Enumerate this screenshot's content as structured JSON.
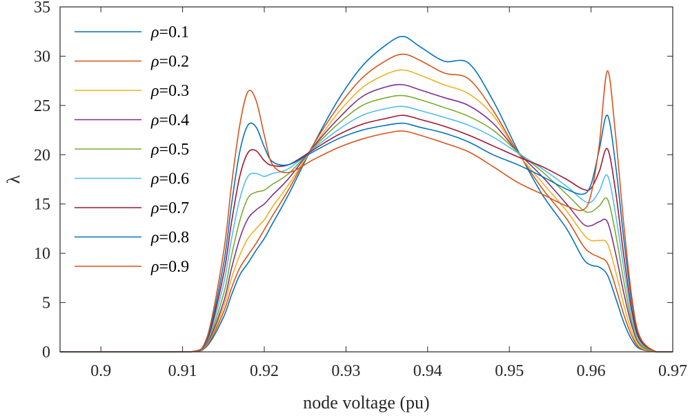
{
  "chart_data": {
    "type": "line",
    "title": "",
    "xlabel": "node voltage (pu)",
    "ylabel": "λ",
    "xlim": [
      0.895,
      0.97
    ],
    "ylim": [
      0,
      35
    ],
    "xticks": [
      0.9,
      0.91,
      0.92,
      0.93,
      0.94,
      0.95,
      0.96,
      0.97
    ],
    "xtick_labels": [
      "0.9",
      "0.91",
      "0.92",
      "0.93",
      "0.94",
      "0.95",
      "0.96",
      "0.97"
    ],
    "yticks": [
      0,
      5,
      10,
      15,
      20,
      25,
      30,
      35
    ],
    "ytick_labels": [
      "0",
      "5",
      "10",
      "15",
      "20",
      "25",
      "30",
      "35"
    ],
    "grid": false,
    "legend_position": "top-left",
    "x": [
      0.895,
      0.905,
      0.911,
      0.913,
      0.915,
      0.916,
      0.917,
      0.918,
      0.919,
      0.92,
      0.921,
      0.923,
      0.926,
      0.929,
      0.932,
      0.935,
      0.937,
      0.939,
      0.942,
      0.945,
      0.948,
      0.951,
      0.954,
      0.957,
      0.959,
      0.96,
      0.961,
      0.962,
      0.963,
      0.964,
      0.965,
      0.966,
      0.968,
      0.97
    ],
    "series": [
      {
        "name": "ρ=0.1",
        "color": "#0072BD",
        "values": [
          0,
          0,
          0,
          0.6,
          3.5,
          5.8,
          7.8,
          9.0,
          10.3,
          11.5,
          13.0,
          16.0,
          21.0,
          25.5,
          29.0,
          31.2,
          32.0,
          31.0,
          29.5,
          29.3,
          25.5,
          20.5,
          16.0,
          12.5,
          9.5,
          8.8,
          8.6,
          7.8,
          5.5,
          3.0,
          1.2,
          0.3,
          0,
          0
        ]
      },
      {
        "name": "ρ=0.2",
        "color": "#D95319",
        "values": [
          0,
          0,
          0,
          0.7,
          4.0,
          6.5,
          8.5,
          9.8,
          11.0,
          12.4,
          13.8,
          16.5,
          21.0,
          24.8,
          27.8,
          29.6,
          30.2,
          29.6,
          28.3,
          27.7,
          24.5,
          20.3,
          16.6,
          13.5,
          10.8,
          10.0,
          9.6,
          9.0,
          6.6,
          3.8,
          1.6,
          0.4,
          0,
          0
        ]
      },
      {
        "name": "ρ=0.3",
        "color": "#EDB120",
        "values": [
          0,
          0,
          0,
          0.8,
          4.5,
          7.5,
          9.8,
          11.5,
          12.5,
          13.4,
          14.7,
          17.0,
          20.8,
          24.2,
          26.8,
          28.2,
          28.6,
          28.1,
          27.1,
          26.2,
          24.0,
          20.2,
          17.2,
          14.3,
          12.0,
          11.3,
          11.3,
          11.0,
          8.2,
          4.8,
          2.0,
          0.5,
          0,
          0
        ]
      },
      {
        "name": "ρ=0.4",
        "color": "#7E2F8E",
        "values": [
          0,
          0,
          0,
          0.9,
          5.0,
          8.5,
          11.5,
          13.5,
          14.4,
          15.0,
          15.9,
          17.6,
          20.8,
          23.6,
          25.9,
          26.9,
          27.1,
          26.6,
          25.8,
          25.0,
          23.2,
          20.3,
          17.8,
          15.0,
          13.0,
          12.8,
          13.2,
          13.2,
          10.0,
          6.0,
          2.6,
          0.7,
          0,
          0
        ]
      },
      {
        "name": "ρ=0.5",
        "color": "#77AC30",
        "values": [
          0,
          0,
          0,
          1.0,
          5.8,
          9.8,
          13.3,
          15.6,
          16.2,
          16.4,
          17.0,
          18.1,
          20.7,
          23.1,
          25.0,
          25.8,
          26.0,
          25.6,
          24.8,
          23.9,
          22.5,
          20.3,
          18.3,
          16.0,
          14.4,
          14.2,
          14.8,
          15.5,
          12.0,
          7.2,
          3.0,
          0.8,
          0,
          0
        ]
      },
      {
        "name": "ρ=0.6",
        "color": "#4DBEEE",
        "values": [
          0,
          0,
          0,
          1.1,
          6.8,
          11.5,
          15.5,
          17.8,
          18.1,
          17.8,
          18.1,
          18.6,
          20.6,
          22.5,
          24.0,
          24.7,
          24.9,
          24.5,
          23.8,
          23.0,
          21.8,
          20.2,
          18.6,
          16.8,
          15.4,
          15.2,
          16.3,
          17.9,
          14.0,
          8.5,
          3.6,
          1.0,
          0,
          0
        ]
      },
      {
        "name": "ρ=0.7",
        "color": "#A2142F",
        "values": [
          0,
          0,
          0,
          1.2,
          7.8,
          13.2,
          17.8,
          20.2,
          20.4,
          19.4,
          18.9,
          19.0,
          20.5,
          22.0,
          23.1,
          23.7,
          24.0,
          23.6,
          22.9,
          22.0,
          20.9,
          19.8,
          18.8,
          17.5,
          16.5,
          16.6,
          18.3,
          20.6,
          16.3,
          9.8,
          4.2,
          1.2,
          0,
          0
        ]
      },
      {
        "name": "ρ=0.8",
        "color": "#0072BD",
        "values": [
          0,
          0,
          0,
          1.3,
          8.8,
          15.0,
          20.3,
          23.0,
          22.8,
          20.8,
          19.3,
          19.0,
          20.3,
          21.6,
          22.5,
          23.0,
          23.2,
          22.8,
          22.2,
          21.3,
          20.0,
          19.0,
          17.8,
          16.5,
          16.0,
          17.0,
          20.5,
          24.0,
          19.0,
          11.5,
          5.0,
          1.4,
          0,
          0
        ]
      },
      {
        "name": "ρ=0.9",
        "color": "#D95319",
        "values": [
          0,
          0,
          0,
          1.5,
          10.0,
          17.0,
          23.0,
          26.4,
          25.5,
          22.0,
          19.0,
          18.2,
          19.5,
          20.7,
          21.6,
          22.2,
          22.4,
          22.0,
          21.2,
          20.3,
          18.8,
          17.2,
          16.0,
          14.8,
          14.4,
          16.0,
          21.0,
          28.5,
          22.0,
          13.0,
          5.5,
          1.5,
          0,
          0
        ]
      }
    ]
  }
}
